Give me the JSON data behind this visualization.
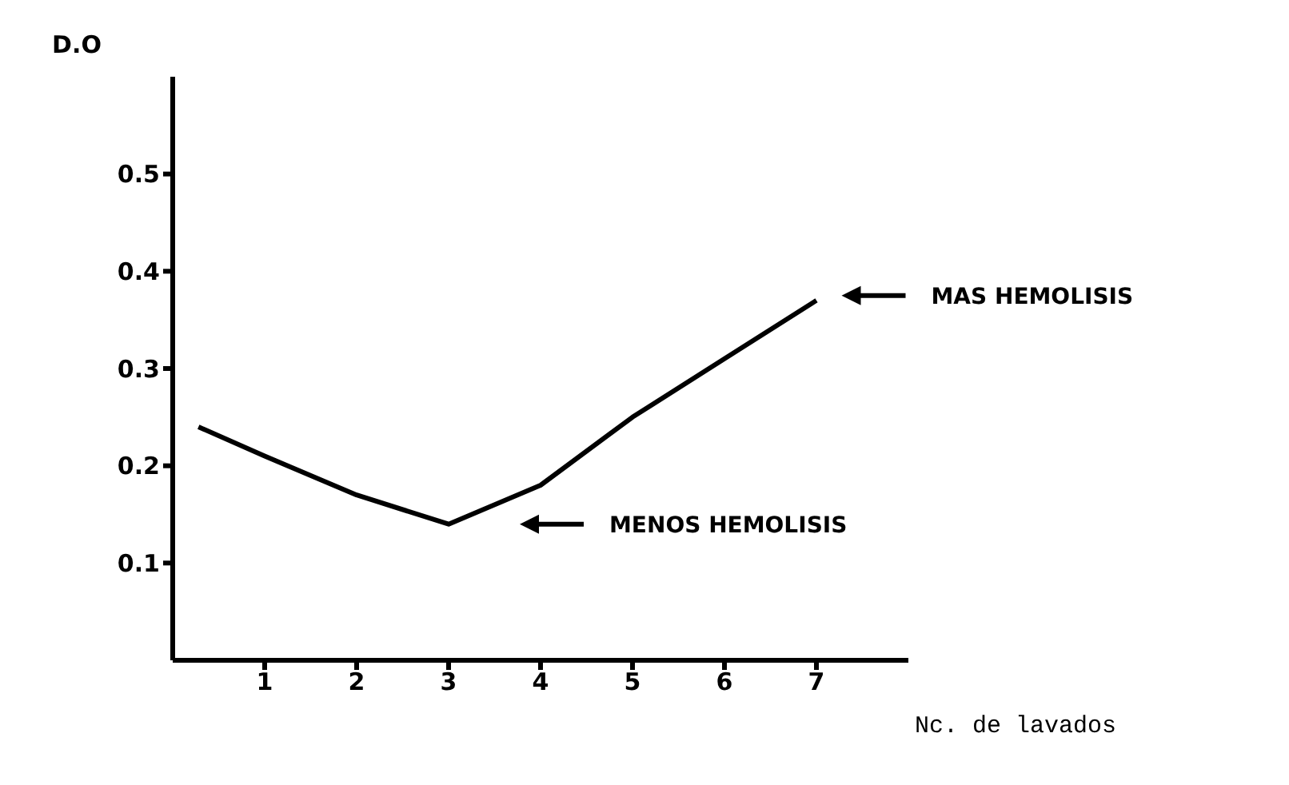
{
  "chart_data": {
    "type": "line",
    "xlabel": "Nc. de lavados",
    "ylabel": "D.O",
    "x": [
      0.28,
      1,
      2,
      3,
      4,
      5,
      6,
      7
    ],
    "series": [
      {
        "color": "#000000",
        "values": [
          0.24,
          0.21,
          0.17,
          0.14,
          0.18,
          0.25,
          0.31,
          0.37
        ]
      }
    ],
    "xlim": [
      0,
      8
    ],
    "xticks": [
      1,
      2,
      3,
      4,
      5,
      6,
      7
    ],
    "ylim": [
      0,
      0.6
    ],
    "yticks": [
      0.1,
      0.2,
      0.3,
      0.4,
      0.5
    ],
    "annotations": [
      "MAS HEMOLISIS",
      "MENOS HEMOLISIS"
    ]
  }
}
